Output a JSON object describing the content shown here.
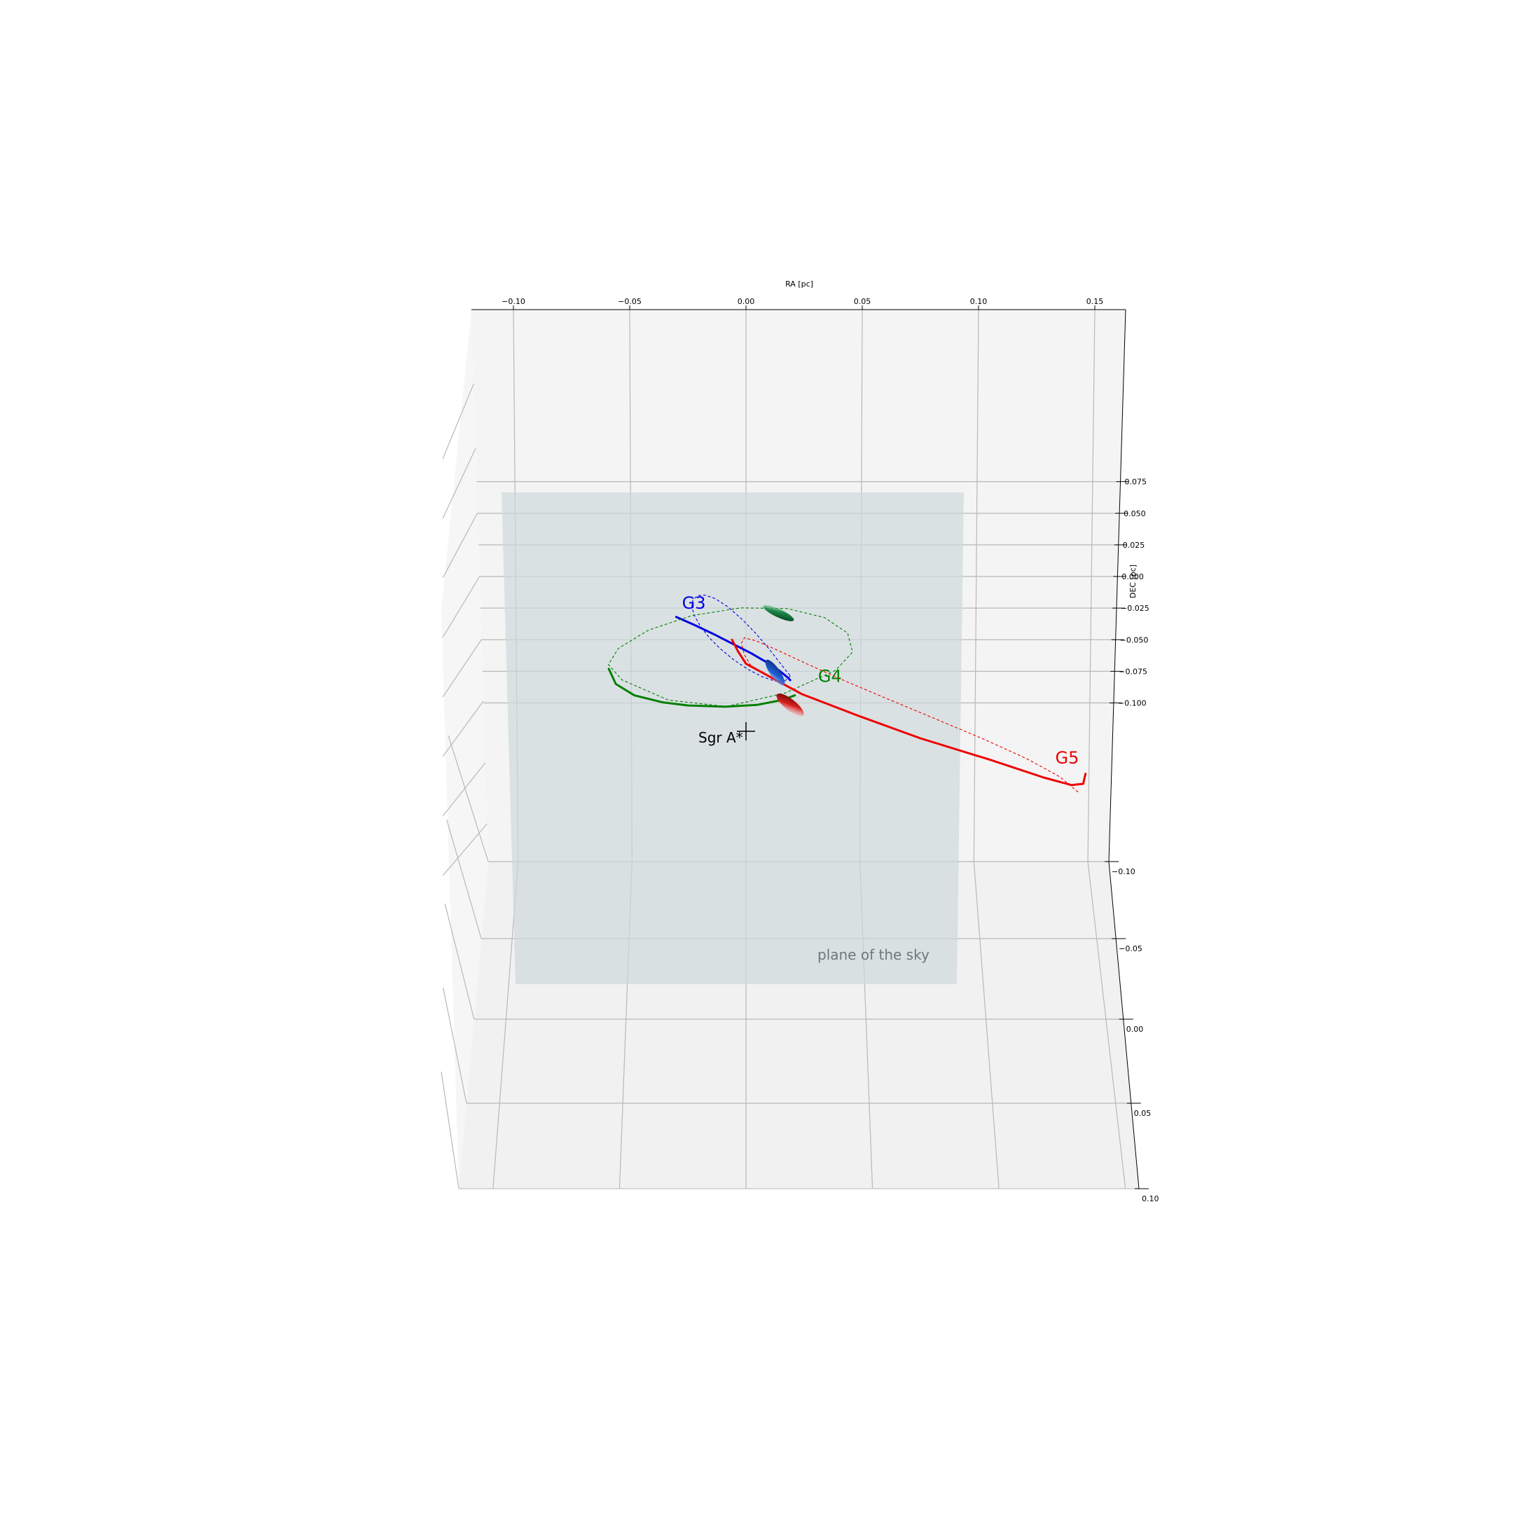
{
  "chart_data": {
    "type": "line",
    "projection": "3d",
    "title": "",
    "xlabel": "RA [pc]",
    "ylabel": "DEC [pc]",
    "zlabel": "",
    "x_ticks": [
      "−0.10",
      "−0.05",
      "0.00",
      "0.05",
      "0.10",
      "0.15"
    ],
    "y_ticks": [
      "0.075",
      "0.050",
      "0.025",
      "0.000",
      "−0.025",
      "−0.050",
      "−0.075",
      "−0.100"
    ],
    "z_ticks": [
      "−0.10",
      "−0.05",
      "0.00",
      "0.05",
      "0.10"
    ],
    "plane_label": "plane of the sky",
    "center_label": "Sgr A*",
    "grid": true,
    "series": [
      {
        "name": "G3",
        "color": "#0000e0",
        "orbit_ra": [
          0.0191,
          0.0164,
          0.0122,
          0.0069,
          0.0009,
          -0.0052,
          -0.0109,
          -0.0159,
          -0.0197,
          -0.0223,
          -0.0233,
          -0.0228,
          -0.0208,
          -0.0175,
          -0.0131,
          -0.0078,
          -0.0019,
          0.0042,
          0.0099,
          0.0149,
          0.0191
        ],
        "orbit_dec": [
          -0.0787,
          -0.0831,
          -0.0826,
          -0.0792,
          -0.0735,
          -0.066,
          -0.0574,
          -0.0482,
          -0.039,
          -0.0307,
          -0.0237,
          -0.0184,
          -0.0152,
          -0.0148,
          -0.0176,
          -0.024,
          -0.0335,
          -0.045,
          -0.0573,
          -0.0691,
          -0.0787
        ],
        "track_ra": [
          -0.03,
          -0.022,
          -0.014,
          -0.006,
          0.002,
          0.009,
          0.014,
          0.018,
          0.019
        ],
        "track_dec": [
          -0.032,
          -0.0385,
          -0.0455,
          -0.053,
          -0.0605,
          -0.068,
          -0.074,
          -0.08,
          -0.082
        ]
      },
      {
        "name": "G4",
        "color": "#008000",
        "orbit_ra": [
          -0.0083,
          -0.0333,
          -0.0533,
          -0.0592,
          -0.0549,
          -0.0419,
          -0.0232,
          -0.0023,
          0.0177,
          0.0338,
          0.0437,
          0.0458,
          0.0386,
          0.017,
          -0.0083
        ],
        "orbit_dec": [
          -0.1028,
          -0.0978,
          -0.0818,
          -0.0697,
          -0.0569,
          -0.0424,
          -0.0309,
          -0.0248,
          -0.0254,
          -0.0325,
          -0.0448,
          -0.0597,
          -0.0742,
          -0.0921,
          -0.1028
        ],
        "track_ra": [
          0.021,
          0.016,
          0.005,
          -0.009,
          -0.025,
          -0.036,
          -0.048,
          -0.056,
          -0.059
        ],
        "track_dec": [
          -0.094,
          -0.0975,
          -0.1015,
          -0.103,
          -0.102,
          -0.0995,
          -0.094,
          -0.085,
          -0.073
        ]
      },
      {
        "name": "G5",
        "color": "#ee0000",
        "orbit_ra": [
          0.1428,
          0.135,
          0.1208,
          0.1024,
          0.082,
          0.0616,
          0.0427,
          0.0265,
          0.0136,
          0.0045,
          -0.0007,
          -0.002,
          -0.0007,
          0.002
        ],
        "orbit_dec": [
          -0.1705,
          -0.1585,
          -0.1442,
          -0.1288,
          -0.113,
          -0.0974,
          -0.0827,
          -0.0694,
          -0.0584,
          -0.051,
          -0.0484,
          -0.0528,
          -0.062,
          -0.07
        ],
        "track_ra": [
          -0.006,
          -0.0035,
          0.0,
          0.012,
          0.024,
          0.048,
          0.075,
          0.105,
          0.128,
          0.14,
          0.145,
          0.146
        ],
        "track_dec": [
          -0.05,
          -0.059,
          -0.069,
          -0.081,
          -0.093,
          -0.11,
          -0.128,
          -0.145,
          -0.159,
          -0.165,
          -0.164,
          -0.156
        ]
      }
    ]
  }
}
